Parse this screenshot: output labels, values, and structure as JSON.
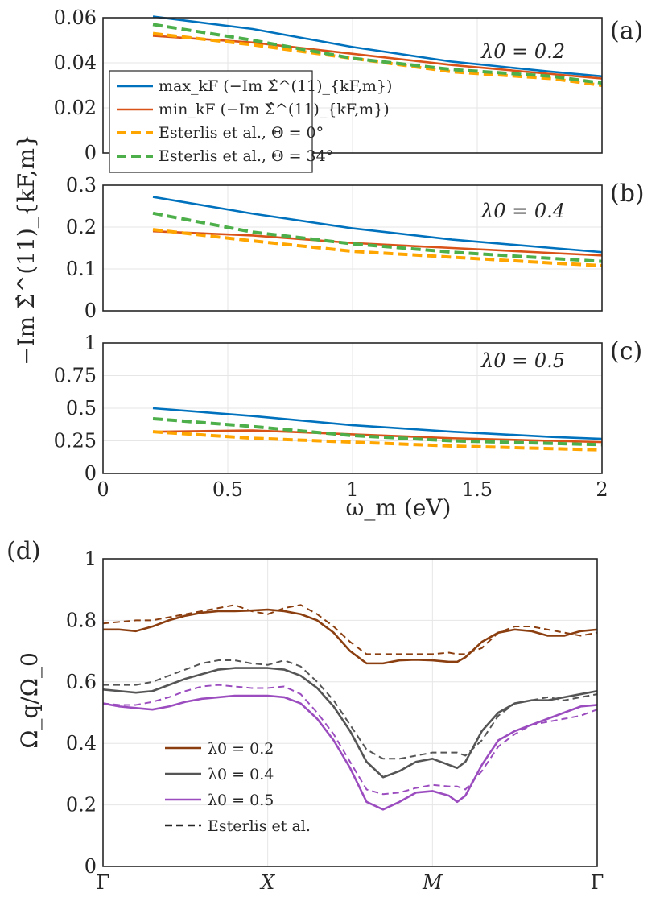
{
  "colors": {
    "max_curve": "#0072BD",
    "min_curve": "#D95319",
    "esterlis_0": "#FFA500",
    "esterlis_34": "#4DAF4A",
    "lambda_02": "#8B3E0F",
    "lambda_04": "#555555",
    "lambda_05": "#9B4DBF",
    "esterlis_dashed": "#262626"
  },
  "top_figure": {
    "ylabel": "−Im Σ̂^(11)_{kF,m}",
    "xlabel": "ω_m (eV)",
    "x_ticks": [
      "0",
      "0.5",
      "1",
      "1.5",
      "2"
    ],
    "legend": [
      {
        "label": "max_kF (−Im Σ̂^(11)_{kF,m})"
      },
      {
        "label": "min_kF (−Im Σ̂^(11)_{kF,m})"
      },
      {
        "label": "Esterlis et al., Θ = 0°"
      },
      {
        "label": "Esterlis et al., Θ = 34°"
      }
    ]
  },
  "panel_d": {
    "ylabel": "Ω_q/Ω_0",
    "legend": [
      {
        "label": "λ0 = 0.2"
      },
      {
        "label": "λ0 = 0.4"
      },
      {
        "label": "λ0 = 0.5"
      },
      {
        "label": "Esterlis et al."
      }
    ]
  },
  "chart_data": [
    {
      "panel": "(a)",
      "type": "line",
      "annotation": "λ0 = 0.2",
      "xlim": [
        0,
        2
      ],
      "ylim": [
        0,
        0.06
      ],
      "y_ticks": [
        "0",
        "0.02",
        "0.04",
        "0.06"
      ],
      "x": [
        0.2,
        0.6,
        1.0,
        1.4,
        1.8,
        2.0
      ],
      "series": [
        {
          "name": "max",
          "values": [
            0.0605,
            0.055,
            0.047,
            0.0405,
            0.036,
            0.034
          ]
        },
        {
          "name": "min",
          "values": [
            0.052,
            0.049,
            0.044,
            0.039,
            0.035,
            0.033
          ]
        },
        {
          "name": "esterlis_0",
          "values": [
            0.053,
            0.048,
            0.042,
            0.036,
            0.033,
            0.03
          ]
        },
        {
          "name": "esterlis_34",
          "values": [
            0.057,
            0.05,
            0.042,
            0.037,
            0.034,
            0.031
          ]
        }
      ]
    },
    {
      "panel": "(b)",
      "type": "line",
      "annotation": "λ0 = 0.4",
      "xlim": [
        0,
        2
      ],
      "ylim": [
        0,
        0.3
      ],
      "y_ticks": [
        "0",
        "0.1",
        "0.2",
        "0.3"
      ],
      "x": [
        0.2,
        0.6,
        1.0,
        1.4,
        1.8,
        2.0
      ],
      "series": [
        {
          "name": "max",
          "values": [
            0.272,
            0.232,
            0.197,
            0.17,
            0.15,
            0.14
          ]
        },
        {
          "name": "min",
          "values": [
            0.19,
            0.18,
            0.162,
            0.15,
            0.138,
            0.132
          ]
        },
        {
          "name": "esterlis_0",
          "values": [
            0.194,
            0.167,
            0.142,
            0.128,
            0.114,
            0.108
          ]
        },
        {
          "name": "esterlis_34",
          "values": [
            0.233,
            0.188,
            0.16,
            0.14,
            0.125,
            0.118
          ]
        }
      ]
    },
    {
      "panel": "(c)",
      "type": "line",
      "annotation": "λ0 = 0.5",
      "xlim": [
        0,
        2
      ],
      "ylim": [
        0,
        1
      ],
      "y_ticks": [
        "0",
        "0.25",
        "0.5",
        "0.75",
        "1"
      ],
      "x": [
        0.2,
        0.6,
        1.0,
        1.4,
        1.8,
        2.0
      ],
      "series": [
        {
          "name": "max",
          "values": [
            0.5,
            0.44,
            0.37,
            0.32,
            0.28,
            0.265
          ]
        },
        {
          "name": "min",
          "values": [
            0.32,
            0.33,
            0.3,
            0.27,
            0.25,
            0.24
          ]
        },
        {
          "name": "esterlis_0",
          "values": [
            0.32,
            0.27,
            0.24,
            0.21,
            0.19,
            0.18
          ]
        },
        {
          "name": "esterlis_34",
          "values": [
            0.42,
            0.36,
            0.29,
            0.25,
            0.23,
            0.22
          ]
        }
      ]
    },
    {
      "panel": "(d)",
      "type": "line",
      "xlim": [
        0,
        3
      ],
      "ylim": [
        0,
        1
      ],
      "x_ticks": [
        "Γ",
        "X",
        "M",
        "Γ"
      ],
      "x_tick_positions": [
        0,
        1,
        2,
        3
      ],
      "y_ticks": [
        "0",
        "0.2",
        "0.4",
        "0.6",
        "0.8",
        "1"
      ],
      "x": [
        0,
        0.1,
        0.2,
        0.3,
        0.4,
        0.5,
        0.6,
        0.7,
        0.8,
        0.9,
        1.0,
        1.1,
        1.2,
        1.3,
        1.4,
        1.5,
        1.6,
        1.7,
        1.8,
        1.9,
        2.0,
        2.1,
        2.15,
        2.2,
        2.3,
        2.4,
        2.5,
        2.6,
        2.7,
        2.8,
        2.9,
        3.0
      ],
      "series": [
        {
          "name": "λ0 = 0.2",
          "values": [
            0.77,
            0.77,
            0.765,
            0.78,
            0.8,
            0.815,
            0.825,
            0.83,
            0.83,
            0.832,
            0.835,
            0.83,
            0.82,
            0.8,
            0.76,
            0.7,
            0.66,
            0.66,
            0.67,
            0.672,
            0.67,
            0.665,
            0.665,
            0.68,
            0.73,
            0.76,
            0.77,
            0.765,
            0.75,
            0.75,
            0.765,
            0.77
          ]
        },
        {
          "name": "λ0 = 0.2 Esterlis",
          "values": [
            0.79,
            0.795,
            0.8,
            0.8,
            0.81,
            0.82,
            0.83,
            0.84,
            0.85,
            0.83,
            0.82,
            0.84,
            0.85,
            0.82,
            0.78,
            0.73,
            0.69,
            0.69,
            0.69,
            0.69,
            0.69,
            0.695,
            0.69,
            0.69,
            0.71,
            0.76,
            0.78,
            0.78,
            0.77,
            0.76,
            0.75,
            0.76
          ]
        },
        {
          "name": "λ0 = 0.4",
          "values": [
            0.575,
            0.57,
            0.565,
            0.57,
            0.59,
            0.61,
            0.625,
            0.64,
            0.645,
            0.645,
            0.645,
            0.64,
            0.62,
            0.58,
            0.52,
            0.44,
            0.34,
            0.29,
            0.31,
            0.34,
            0.35,
            0.33,
            0.32,
            0.34,
            0.44,
            0.5,
            0.53,
            0.54,
            0.54,
            0.55,
            0.56,
            0.57
          ]
        },
        {
          "name": "λ0 = 0.4 Esterlis",
          "values": [
            0.59,
            0.59,
            0.59,
            0.6,
            0.62,
            0.64,
            0.66,
            0.67,
            0.67,
            0.66,
            0.655,
            0.67,
            0.65,
            0.6,
            0.54,
            0.46,
            0.38,
            0.35,
            0.35,
            0.36,
            0.37,
            0.37,
            0.37,
            0.36,
            0.41,
            0.49,
            0.53,
            0.54,
            0.55,
            0.54,
            0.55,
            0.56
          ]
        },
        {
          "name": "λ0 = 0.5",
          "values": [
            0.53,
            0.52,
            0.515,
            0.51,
            0.52,
            0.535,
            0.545,
            0.55,
            0.555,
            0.555,
            0.555,
            0.55,
            0.53,
            0.48,
            0.41,
            0.32,
            0.21,
            0.185,
            0.21,
            0.24,
            0.245,
            0.23,
            0.21,
            0.23,
            0.33,
            0.41,
            0.44,
            0.46,
            0.48,
            0.5,
            0.52,
            0.525
          ]
        },
        {
          "name": "λ0 = 0.5 Esterlis",
          "values": [
            0.53,
            0.525,
            0.525,
            0.535,
            0.55,
            0.57,
            0.585,
            0.59,
            0.585,
            0.58,
            0.58,
            0.585,
            0.56,
            0.5,
            0.43,
            0.34,
            0.25,
            0.235,
            0.24,
            0.255,
            0.265,
            0.26,
            0.26,
            0.25,
            0.31,
            0.39,
            0.43,
            0.46,
            0.47,
            0.48,
            0.49,
            0.51
          ]
        }
      ]
    }
  ]
}
